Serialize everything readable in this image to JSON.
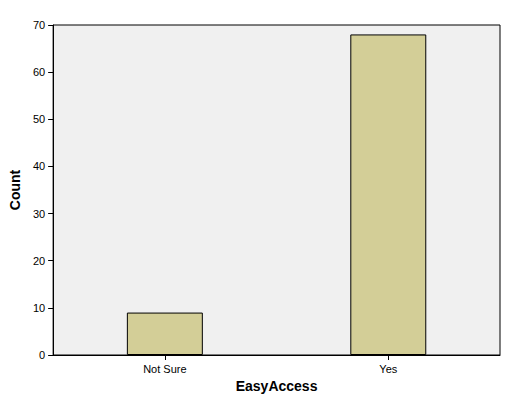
{
  "chart_data": {
    "type": "bar",
    "xlabel": "EasyAccess",
    "ylabel": "Count",
    "categories": [
      "Not Sure",
      "Yes"
    ],
    "values": [
      9,
      68
    ],
    "color": "#d3ce97",
    "ylim": [
      0,
      70
    ],
    "yticks": [
      0,
      10,
      20,
      30,
      40,
      50,
      60,
      70
    ],
    "grid": false
  }
}
